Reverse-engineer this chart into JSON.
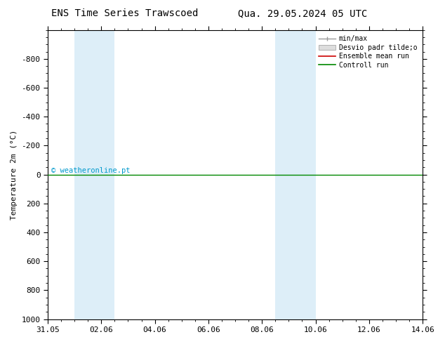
{
  "title_left": "ENS Time Series Trawscoed",
  "title_right": "Qua. 29.05.2024 05 UTC",
  "ylabel": "Temperature 2m (°C)",
  "ylim_bottom": -1000,
  "ylim_top": 1000,
  "y_ticks": [
    -800,
    -600,
    -400,
    -200,
    0,
    200,
    400,
    600,
    800,
    1000
  ],
  "x_tick_labels": [
    "31.05",
    "02.06",
    "04.06",
    "06.06",
    "08.06",
    "10.06",
    "12.06",
    "14.06"
  ],
  "x_tick_positions": [
    0,
    2,
    4,
    6,
    8,
    10,
    12,
    14
  ],
  "xlim": [
    0,
    14
  ],
  "blue_bands": [
    {
      "start": 1.0,
      "end": 2.5
    },
    {
      "start": 8.5,
      "end": 10.0
    }
  ],
  "control_run_y": 0,
  "control_run_color": "#008800",
  "ensemble_mean_color": "#cc0000",
  "minmax_color": "#999999",
  "stddev_color": "#dddddd",
  "band_color": "#ddeef8",
  "watermark": "© weatheronline.pt",
  "watermark_color": "#0099cc",
  "legend_labels": [
    "min/max",
    "Desvio padr tilde;o",
    "Ensemble mean run",
    "Controll run"
  ],
  "background_color": "#ffffff",
  "title_fontsize": 10,
  "axis_fontsize": 8,
  "tick_fontsize": 8
}
